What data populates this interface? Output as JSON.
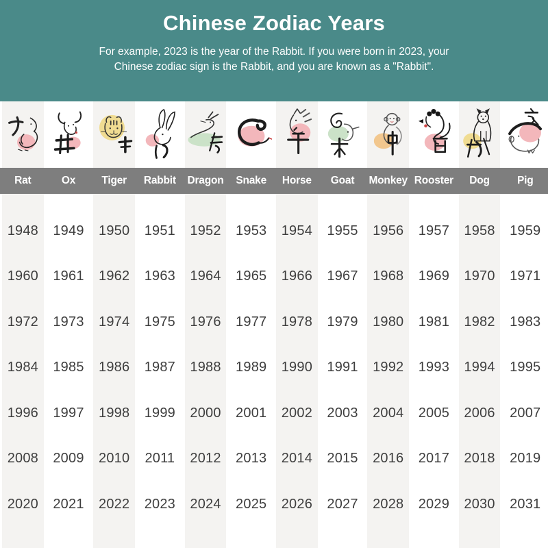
{
  "header": {
    "title": "Chinese Zodiac Years",
    "subtitle_line1": "For example, 2023 is the year of the Rabbit. If you were born in 2023, your",
    "subtitle_line2": "Chinese zodiac sign is the Rabbit, and you are known as a \"Rabbit\".",
    "background_color": "#4a8a89",
    "text_color": "#ffffff"
  },
  "name_band": {
    "background_color": "#7e7e7e",
    "text_color": "#ffffff"
  },
  "table": {
    "stripe_color": "#f4f3f1",
    "year_text_color": "#3e3e3e",
    "start_year": 1948,
    "end_year": 2031,
    "columns": [
      {
        "name": "Rat",
        "glyph": "子",
        "icon": "rat-icon",
        "blob_color": "#f3b7bb",
        "years": [
          1948,
          1960,
          1972,
          1984,
          1996,
          2008,
          2020
        ]
      },
      {
        "name": "Ox",
        "glyph": "丑",
        "icon": "ox-icon",
        "blob_color": "#f3b7bb",
        "years": [
          1949,
          1961,
          1973,
          1985,
          1997,
          2009,
          2021
        ]
      },
      {
        "name": "Tiger",
        "glyph": "寅",
        "icon": "tiger-icon",
        "blob_color": "#f0dc92",
        "years": [
          1950,
          1962,
          1974,
          1986,
          1998,
          2010,
          2022
        ]
      },
      {
        "name": "Rabbit",
        "glyph": "卯",
        "icon": "rabbit-icon",
        "blob_color": "#f3b7bb",
        "years": [
          1951,
          1963,
          1975,
          1987,
          1999,
          2011,
          2023
        ]
      },
      {
        "name": "Dragon",
        "glyph": "辰",
        "icon": "dragon-icon",
        "blob_color": "#cbe2c8",
        "years": [
          1952,
          1964,
          1976,
          1988,
          2000,
          2012,
          2024
        ]
      },
      {
        "name": "Snake",
        "glyph": "巳",
        "icon": "snake-icon",
        "blob_color": "#f3b7bb",
        "years": [
          1953,
          1965,
          1977,
          1989,
          2001,
          2013,
          2025
        ]
      },
      {
        "name": "Horse",
        "glyph": "午",
        "icon": "horse-icon",
        "blob_color": "#f3b7bb",
        "years": [
          1954,
          1966,
          1978,
          1990,
          2002,
          2014,
          2026
        ]
      },
      {
        "name": "Goat",
        "glyph": "未",
        "icon": "goat-icon",
        "blob_color": "#cbe2c8",
        "years": [
          1955,
          1967,
          1979,
          1991,
          2003,
          2015,
          2027
        ]
      },
      {
        "name": "Monkey",
        "glyph": "申",
        "icon": "monkey-icon",
        "blob_color": "#f2c78e",
        "years": [
          1956,
          1968,
          1980,
          1992,
          2004,
          2016,
          2028
        ]
      },
      {
        "name": "Rooster",
        "glyph": "酉",
        "icon": "rooster-icon",
        "blob_color": "#f3b7bb",
        "years": [
          1957,
          1969,
          1981,
          1993,
          2005,
          2017,
          2029
        ]
      },
      {
        "name": "Dog",
        "glyph": "戌",
        "icon": "dog-icon",
        "blob_color": "#f0dc92",
        "years": [
          1958,
          1970,
          1982,
          1994,
          2006,
          2018,
          2030
        ]
      },
      {
        "name": "Pig",
        "glyph": "亥",
        "icon": "pig-icon",
        "blob_color": "#f3b7bb",
        "years": [
          1959,
          1971,
          1983,
          1995,
          2007,
          2019,
          2031
        ]
      }
    ]
  },
  "chart_data": {
    "type": "table",
    "title": "Chinese Zodiac Years",
    "categories": [
      "Rat",
      "Ox",
      "Tiger",
      "Rabbit",
      "Dragon",
      "Snake",
      "Horse",
      "Goat",
      "Monkey",
      "Rooster",
      "Dog",
      "Pig"
    ],
    "rows": [
      [
        1948,
        1949,
        1950,
        1951,
        1952,
        1953,
        1954,
        1955,
        1956,
        1957,
        1958,
        1959
      ],
      [
        1960,
        1961,
        1962,
        1963,
        1964,
        1965,
        1966,
        1967,
        1968,
        1969,
        1970,
        1971
      ],
      [
        1972,
        1973,
        1974,
        1975,
        1976,
        1977,
        1978,
        1979,
        1980,
        1981,
        1982,
        1983
      ],
      [
        1984,
        1985,
        1986,
        1987,
        1988,
        1989,
        1990,
        1991,
        1992,
        1993,
        1994,
        1995
      ],
      [
        1996,
        1997,
        1998,
        1999,
        2000,
        2001,
        2002,
        2003,
        2004,
        2005,
        2006,
        2007
      ],
      [
        2008,
        2009,
        2010,
        2011,
        2012,
        2013,
        2014,
        2015,
        2016,
        2017,
        2018,
        2019
      ],
      [
        2020,
        2021,
        2022,
        2023,
        2024,
        2025,
        2026,
        2027,
        2028,
        2029,
        2030,
        2031
      ]
    ]
  }
}
